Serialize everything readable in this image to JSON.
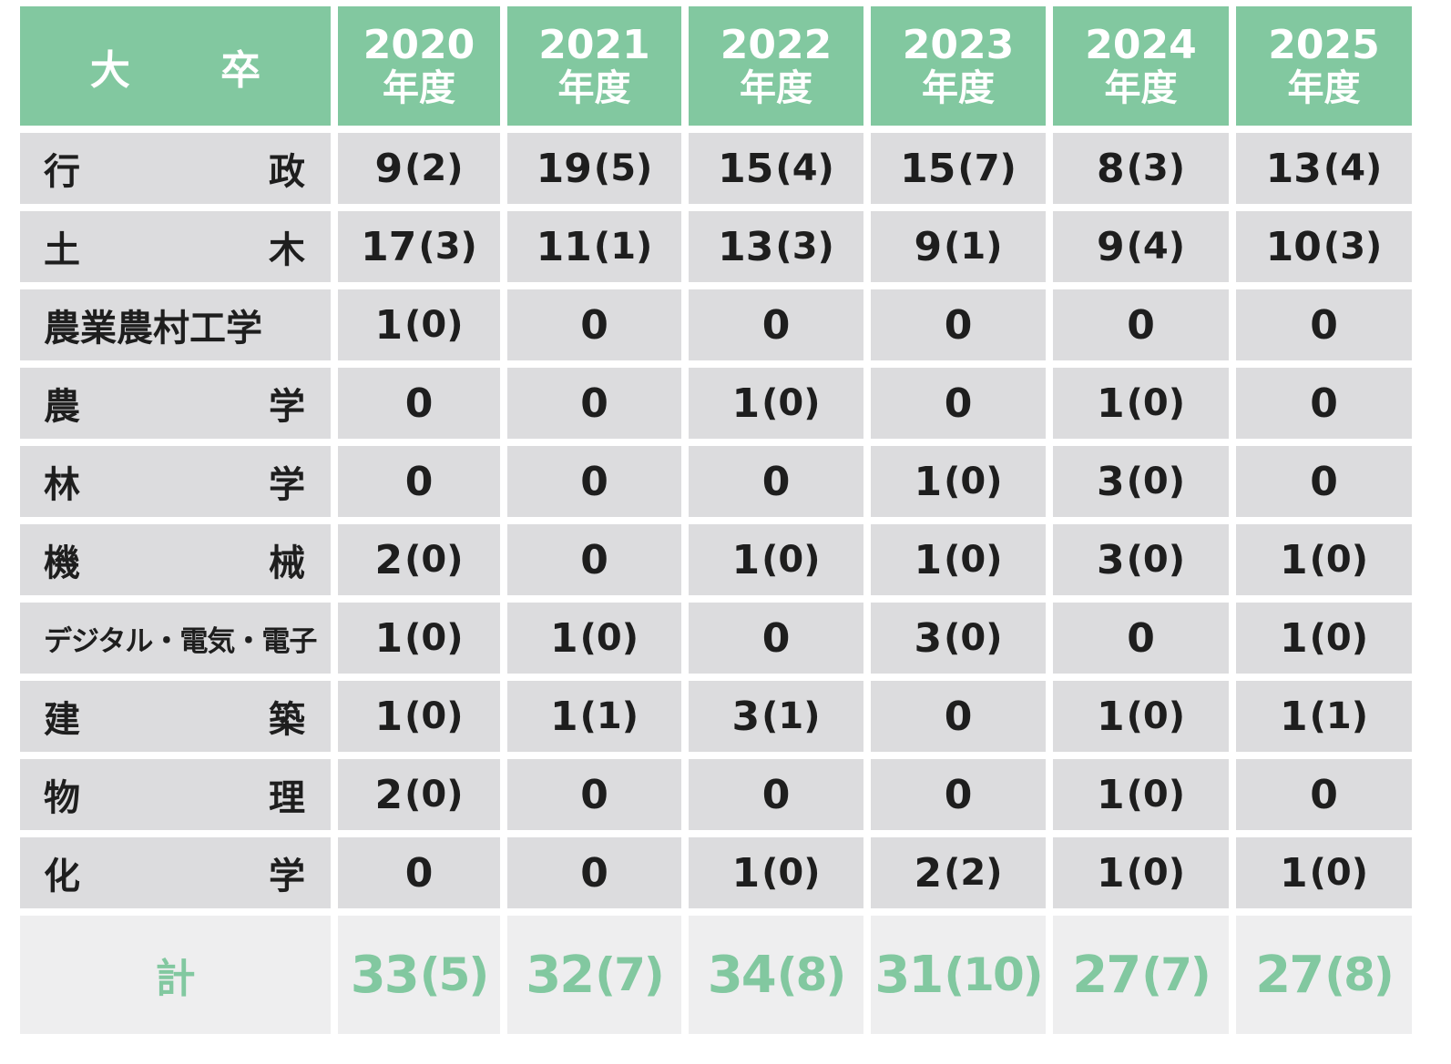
{
  "table": {
    "header": "大 卒",
    "years": [
      {
        "year": "2020",
        "suffix": "年度"
      },
      {
        "year": "2021",
        "suffix": "年度"
      },
      {
        "year": "2022",
        "suffix": "年度"
      },
      {
        "year": "2023",
        "suffix": "年度"
      },
      {
        "year": "2024",
        "suffix": "年度"
      },
      {
        "year": "2025",
        "suffix": "年度"
      }
    ],
    "rows": [
      {
        "label": [
          "行",
          "政"
        ],
        "values": [
          "9(2)",
          "19(5)",
          "15(4)",
          "15(7)",
          "8(3)",
          "13(4)"
        ]
      },
      {
        "label": [
          "土",
          "木"
        ],
        "values": [
          "17(3)",
          "11(1)",
          "13(3)",
          "9(1)",
          "9(4)",
          "10(3)"
        ]
      },
      {
        "label": [
          "農業農村工学"
        ],
        "values": [
          "1(0)",
          "0",
          "0",
          "0",
          "0",
          "0"
        ]
      },
      {
        "label": [
          "農",
          "学"
        ],
        "values": [
          "0",
          "0",
          "1(0)",
          "0",
          "1(0)",
          "0"
        ]
      },
      {
        "label": [
          "林",
          "学"
        ],
        "values": [
          "0",
          "0",
          "0",
          "1(0)",
          "3(0)",
          "0"
        ]
      },
      {
        "label": [
          "機",
          "械"
        ],
        "values": [
          "2(0)",
          "0",
          "1(0)",
          "1(0)",
          "3(0)",
          "1(0)"
        ]
      },
      {
        "label": [
          "デジタル・電気・電子"
        ],
        "values": [
          "1(0)",
          "1(0)",
          "0",
          "3(0)",
          "0",
          "1(0)"
        ]
      },
      {
        "label": [
          "建",
          "築"
        ],
        "values": [
          "1(0)",
          "1(1)",
          "3(1)",
          "0",
          "1(0)",
          "1(1)"
        ]
      },
      {
        "label": [
          "物",
          "理"
        ],
        "values": [
          "2(0)",
          "0",
          "0",
          "0",
          "1(0)",
          "0"
        ]
      },
      {
        "label": [
          "化",
          "学"
        ],
        "values": [
          "0",
          "0",
          "1(0)",
          "2(2)",
          "1(0)",
          "1(0)"
        ]
      }
    ],
    "total": {
      "label": "計",
      "values": [
        "33(5)",
        "32(7)",
        "34(8)",
        "31(10)",
        "27(7)",
        "27(8)"
      ]
    }
  },
  "colors": {
    "header_bg": "#82c8a0",
    "cell_bg": "#dcdcde",
    "total_bg": "#eeeeef",
    "total_text": "#82c8a0"
  }
}
